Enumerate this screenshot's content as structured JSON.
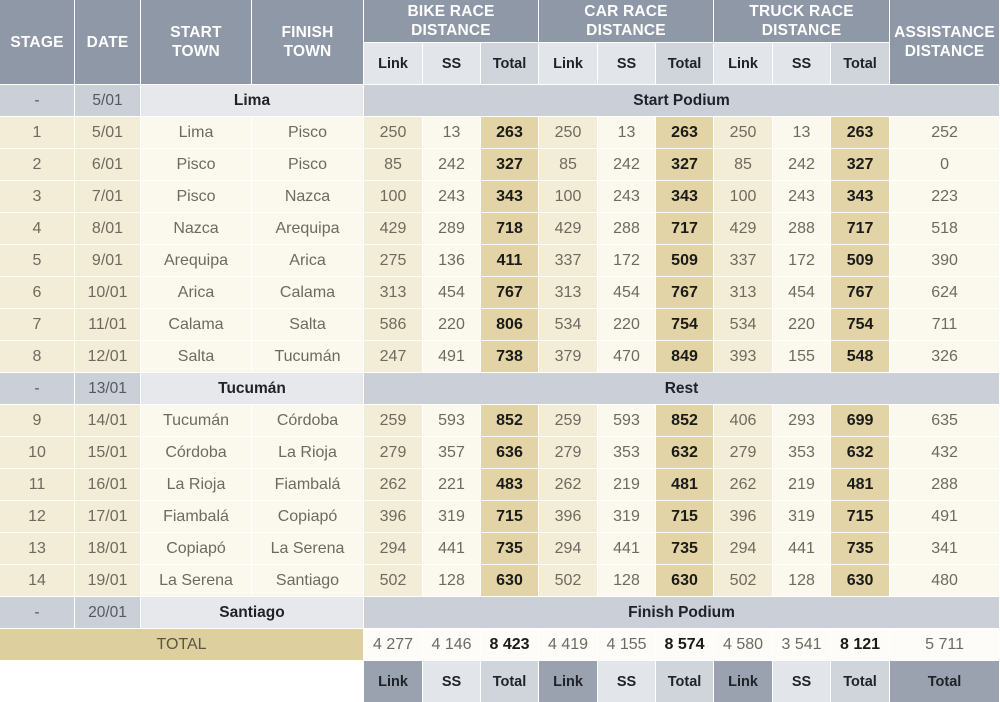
{
  "headers": {
    "stage": "STAGE",
    "date": "DATE",
    "start_town": "START TOWN",
    "finish_town": "FINISH TOWN",
    "bike": "BIKE RACE DISTANCE",
    "car": "CAR RACE DISTANCE",
    "truck": "TRUCK RACE DISTANCE",
    "assistance": "ASSISTANCE DISTANCE",
    "link": "Link",
    "ss": "SS",
    "total": "Total"
  },
  "special_rows": {
    "start": {
      "stage": "-",
      "date": "5/01",
      "town": "Lima",
      "event": "Start Podium"
    },
    "rest": {
      "stage": "-",
      "date": "13/01",
      "town": "Tucumán",
      "event": "Rest"
    },
    "finish": {
      "stage": "-",
      "date": "20/01",
      "town": "Santiago",
      "event": "Finish Podium"
    }
  },
  "stages": [
    {
      "stage": "1",
      "date": "5/01",
      "start": "Lima",
      "finish": "Pisco",
      "bike": [
        "250",
        "13",
        "263"
      ],
      "car": [
        "250",
        "13",
        "263"
      ],
      "truck": [
        "250",
        "13",
        "263"
      ],
      "assist": "252"
    },
    {
      "stage": "2",
      "date": "6/01",
      "start": "Pisco",
      "finish": "Pisco",
      "bike": [
        "85",
        "242",
        "327"
      ],
      "car": [
        "85",
        "242",
        "327"
      ],
      "truck": [
        "85",
        "242",
        "327"
      ],
      "assist": "0"
    },
    {
      "stage": "3",
      "date": "7/01",
      "start": "Pisco",
      "finish": "Nazca",
      "bike": [
        "100",
        "243",
        "343"
      ],
      "car": [
        "100",
        "243",
        "343"
      ],
      "truck": [
        "100",
        "243",
        "343"
      ],
      "assist": "223"
    },
    {
      "stage": "4",
      "date": "8/01",
      "start": "Nazca",
      "finish": "Arequipa",
      "bike": [
        "429",
        "289",
        "718"
      ],
      "car": [
        "429",
        "288",
        "717"
      ],
      "truck": [
        "429",
        "288",
        "717"
      ],
      "assist": "518"
    },
    {
      "stage": "5",
      "date": "9/01",
      "start": "Arequipa",
      "finish": "Arica",
      "bike": [
        "275",
        "136",
        "411"
      ],
      "car": [
        "337",
        "172",
        "509"
      ],
      "truck": [
        "337",
        "172",
        "509"
      ],
      "assist": "390"
    },
    {
      "stage": "6",
      "date": "10/01",
      "start": "Arica",
      "finish": "Calama",
      "bike": [
        "313",
        "454",
        "767"
      ],
      "car": [
        "313",
        "454",
        "767"
      ],
      "truck": [
        "313",
        "454",
        "767"
      ],
      "assist": "624"
    },
    {
      "stage": "7",
      "date": "11/01",
      "start": "Calama",
      "finish": "Salta",
      "bike": [
        "586",
        "220",
        "806"
      ],
      "car": [
        "534",
        "220",
        "754"
      ],
      "truck": [
        "534",
        "220",
        "754"
      ],
      "assist": "711"
    },
    {
      "stage": "8",
      "date": "12/01",
      "start": "Salta",
      "finish": "Tucumán",
      "bike": [
        "247",
        "491",
        "738"
      ],
      "car": [
        "379",
        "470",
        "849"
      ],
      "truck": [
        "393",
        "155",
        "548"
      ],
      "assist": "326"
    },
    {
      "stage": "9",
      "date": "14/01",
      "start": "Tucumán",
      "finish": "Córdoba",
      "bike": [
        "259",
        "593",
        "852"
      ],
      "car": [
        "259",
        "593",
        "852"
      ],
      "truck": [
        "406",
        "293",
        "699"
      ],
      "assist": "635"
    },
    {
      "stage": "10",
      "date": "15/01",
      "start": "Córdoba",
      "finish": "La Rioja",
      "bike": [
        "279",
        "357",
        "636"
      ],
      "car": [
        "279",
        "353",
        "632"
      ],
      "truck": [
        "279",
        "353",
        "632"
      ],
      "assist": "432"
    },
    {
      "stage": "11",
      "date": "16/01",
      "start": "La Rioja",
      "finish": "Fiambalá",
      "bike": [
        "262",
        "221",
        "483"
      ],
      "car": [
        "262",
        "219",
        "481"
      ],
      "truck": [
        "262",
        "219",
        "481"
      ],
      "assist": "288"
    },
    {
      "stage": "12",
      "date": "17/01",
      "start": "Fiambalá",
      "finish": "Copiapó",
      "bike": [
        "396",
        "319",
        "715"
      ],
      "car": [
        "396",
        "319",
        "715"
      ],
      "truck": [
        "396",
        "319",
        "715"
      ],
      "assist": "491"
    },
    {
      "stage": "13",
      "date": "18/01",
      "start": "Copiapó",
      "finish": "La Serena",
      "bike": [
        "294",
        "441",
        "735"
      ],
      "car": [
        "294",
        "441",
        "735"
      ],
      "truck": [
        "294",
        "441",
        "735"
      ],
      "assist": "341"
    },
    {
      "stage": "14",
      "date": "19/01",
      "start": "La Serena",
      "finish": "Santiago",
      "bike": [
        "502",
        "128",
        "630"
      ],
      "car": [
        "502",
        "128",
        "630"
      ],
      "truck": [
        "502",
        "128",
        "630"
      ],
      "assist": "480"
    }
  ],
  "totals": {
    "label": "TOTAL",
    "bike": [
      "4 277",
      "4 146",
      "8 423"
    ],
    "car": [
      "4 419",
      "4 155",
      "8 574"
    ],
    "truck": [
      "4 580",
      "3 541",
      "8 121"
    ],
    "assist": "5 711"
  }
}
